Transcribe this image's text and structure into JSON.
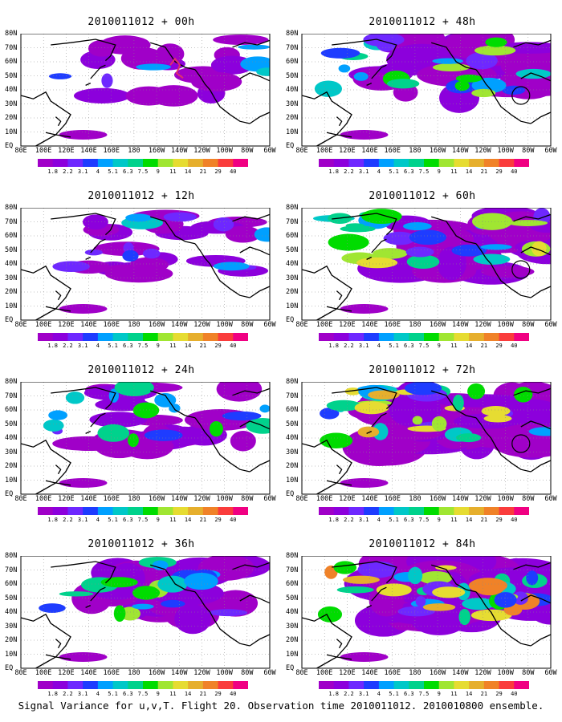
{
  "panels": [
    {
      "title": "2010011012 + 00h",
      "col": 0,
      "row": 0,
      "intensity": 0.15,
      "circle": false
    },
    {
      "title": "2010011012 + 48h",
      "col": 1,
      "row": 0,
      "intensity": 0.55,
      "circle": true
    },
    {
      "title": "2010011012 + 12h",
      "col": 0,
      "row": 1,
      "intensity": 0.3,
      "circle": false
    },
    {
      "title": "2010011012 + 60h",
      "col": 1,
      "row": 1,
      "intensity": 0.65,
      "circle": true
    },
    {
      "title": "2010011012 + 24h",
      "col": 0,
      "row": 2,
      "intensity": 0.4,
      "circle": false
    },
    {
      "title": "2010011012 + 72h",
      "col": 1,
      "row": 2,
      "intensity": 0.8,
      "circle": true
    },
    {
      "title": "2010011012 + 36h",
      "col": 0,
      "row": 3,
      "intensity": 0.48,
      "circle": false
    },
    {
      "title": "2010011012 + 84h",
      "col": 1,
      "row": 3,
      "intensity": 0.9,
      "circle": false
    }
  ],
  "lat_labels": [
    "80N",
    "70N",
    "60N",
    "50N",
    "40N",
    "30N",
    "20N",
    "10N",
    "EQ"
  ],
  "lon_labels": [
    "80E",
    "100E",
    "120E",
    "140E",
    "160E",
    "180",
    "160W",
    "140W",
    "120W",
    "100W",
    "80W",
    "60W"
  ],
  "colorbar": {
    "labels": [
      "1.8",
      "2.2",
      "3.1",
      "4",
      "5.1",
      "6.3",
      "7.5",
      "9",
      "11",
      "14",
      "21",
      "29",
      "40"
    ],
    "colors": [
      "#a000c8",
      "#8c00dc",
      "#6e28ff",
      "#1e3cff",
      "#00a0ff",
      "#00c8c8",
      "#00d28c",
      "#00dc00",
      "#a0e632",
      "#e6dc32",
      "#e6af2d",
      "#f08228",
      "#fa3c3c",
      "#f00082"
    ]
  },
  "caption": "Signal Variance for u,v,T. Flight 20. Observation time 2010011012. 2010010800 ensemble."
}
